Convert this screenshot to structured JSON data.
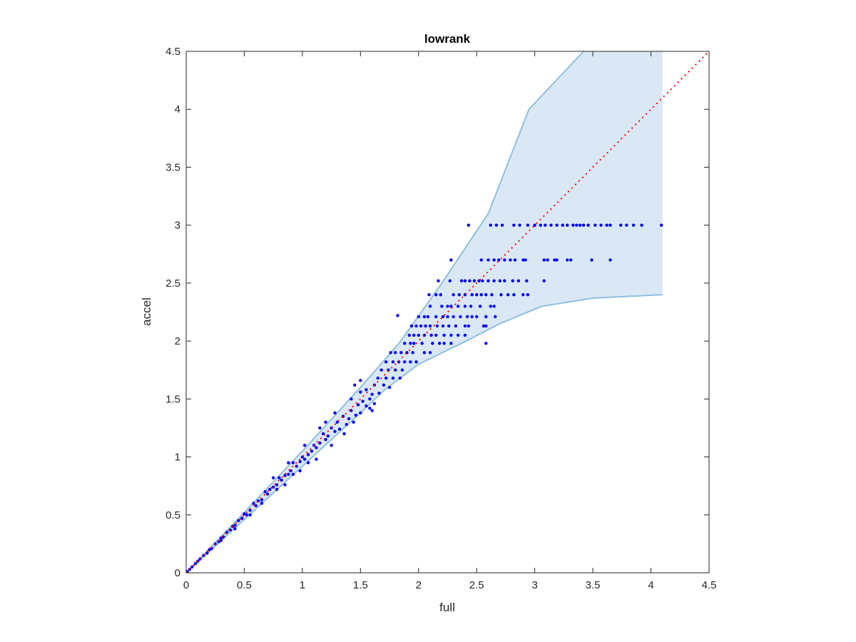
{
  "chart_data": {
    "type": "scatter",
    "title": "lowrank",
    "xlabel": "full",
    "ylabel": "accel",
    "xlim": [
      0,
      4.5
    ],
    "ylim": [
      0,
      4.5
    ],
    "xticks": [
      "0",
      "0.5",
      "1",
      "1.5",
      "2",
      "2.5",
      "3",
      "3.5",
      "4",
      "4.5"
    ],
    "yticks": [
      "0",
      "0.5",
      "1",
      "1.5",
      "2",
      "2.5",
      "3",
      "3.5",
      "4",
      "4.5"
    ],
    "grid": false,
    "colors": {
      "points": "#0000ff",
      "reference_line": "#ff0000",
      "band_fill": "#d9e8f4",
      "band_edge": "#8fc0e0",
      "axes": "#262626"
    },
    "reference_line": {
      "style": "dotted",
      "x": [
        0,
        4.5
      ],
      "y": [
        0,
        4.5
      ]
    },
    "band": {
      "upper": [
        [
          0,
          0
        ],
        [
          0.5,
          0.52
        ],
        [
          1,
          1.05
        ],
        [
          1.5,
          1.6
        ],
        [
          1.84,
          1.99
        ],
        [
          2.2,
          2.5
        ],
        [
          2.6,
          3.1
        ],
        [
          2.95,
          4.0
        ],
        [
          3.42,
          4.5
        ],
        [
          4.1,
          4.5
        ]
      ],
      "lower": [
        [
          0,
          0
        ],
        [
          0.5,
          0.46
        ],
        [
          1,
          0.92
        ],
        [
          1.5,
          1.38
        ],
        [
          1.71,
          1.58
        ],
        [
          2.0,
          1.8
        ],
        [
          2.39,
          1.99
        ],
        [
          2.7,
          2.15
        ],
        [
          3.06,
          2.3
        ],
        [
          3.5,
          2.37
        ],
        [
          4.1,
          2.4
        ]
      ]
    },
    "points": [
      [
        2.43,
        3.0
      ],
      [
        2.62,
        3.0
      ],
      [
        2.67,
        3.0
      ],
      [
        2.72,
        3.0
      ],
      [
        2.82,
        3.0
      ],
      [
        2.87,
        3.0
      ],
      [
        2.94,
        3.0
      ],
      [
        3.0,
        3.0
      ],
      [
        3.05,
        3.0
      ],
      [
        3.09,
        3.0
      ],
      [
        3.14,
        3.0
      ],
      [
        3.19,
        3.0
      ],
      [
        3.24,
        3.0
      ],
      [
        3.28,
        3.0
      ],
      [
        3.33,
        3.0
      ],
      [
        3.36,
        3.0
      ],
      [
        3.39,
        3.0
      ],
      [
        3.42,
        3.0
      ],
      [
        3.46,
        3.0
      ],
      [
        3.52,
        3.0
      ],
      [
        3.57,
        3.0
      ],
      [
        3.62,
        3.0
      ],
      [
        3.65,
        3.0
      ],
      [
        3.74,
        3.0
      ],
      [
        3.79,
        3.0
      ],
      [
        3.85,
        3.0
      ],
      [
        3.92,
        3.0
      ],
      [
        4.09,
        3.0
      ],
      [
        2.28,
        2.7
      ],
      [
        2.54,
        2.7
      ],
      [
        2.6,
        2.7
      ],
      [
        2.65,
        2.7
      ],
      [
        2.69,
        2.7
      ],
      [
        2.74,
        2.7
      ],
      [
        2.79,
        2.7
      ],
      [
        2.83,
        2.7
      ],
      [
        2.9,
        2.7
      ],
      [
        2.92,
        2.7
      ],
      [
        3.08,
        2.7
      ],
      [
        3.11,
        2.7
      ],
      [
        3.17,
        2.7
      ],
      [
        3.19,
        2.7
      ],
      [
        3.28,
        2.7
      ],
      [
        3.31,
        2.7
      ],
      [
        3.49,
        2.7
      ],
      [
        3.65,
        2.7
      ],
      [
        2.17,
        2.52
      ],
      [
        2.27,
        2.52
      ],
      [
        2.37,
        2.52
      ],
      [
        2.4,
        2.52
      ],
      [
        2.44,
        2.52
      ],
      [
        2.48,
        2.52
      ],
      [
        2.52,
        2.52
      ],
      [
        2.55,
        2.52
      ],
      [
        2.6,
        2.52
      ],
      [
        2.65,
        2.52
      ],
      [
        2.7,
        2.52
      ],
      [
        2.74,
        2.52
      ],
      [
        2.81,
        2.52
      ],
      [
        2.86,
        2.52
      ],
      [
        2.93,
        2.52
      ],
      [
        3.08,
        2.52
      ],
      [
        2.09,
        2.4
      ],
      [
        2.15,
        2.4
      ],
      [
        2.19,
        2.4
      ],
      [
        2.3,
        2.4
      ],
      [
        2.35,
        2.4
      ],
      [
        2.4,
        2.4
      ],
      [
        2.46,
        2.4
      ],
      [
        2.5,
        2.4
      ],
      [
        2.54,
        2.4
      ],
      [
        2.58,
        2.4
      ],
      [
        2.63,
        2.4
      ],
      [
        2.71,
        2.4
      ],
      [
        2.77,
        2.4
      ],
      [
        2.82,
        2.4
      ],
      [
        2.9,
        2.4
      ],
      [
        2.94,
        2.4
      ],
      [
        2.1,
        2.3
      ],
      [
        2.2,
        2.3
      ],
      [
        2.25,
        2.3
      ],
      [
        2.28,
        2.3
      ],
      [
        2.34,
        2.3
      ],
      [
        2.4,
        2.3
      ],
      [
        2.45,
        2.3
      ],
      [
        2.53,
        2.3
      ],
      [
        2.62,
        2.3
      ],
      [
        2.65,
        2.3
      ],
      [
        2.0,
        2.21
      ],
      [
        2.05,
        2.21
      ],
      [
        2.08,
        2.21
      ],
      [
        2.15,
        2.21
      ],
      [
        2.21,
        2.21
      ],
      [
        2.25,
        2.21
      ],
      [
        2.3,
        2.21
      ],
      [
        2.36,
        2.21
      ],
      [
        2.42,
        2.21
      ],
      [
        2.46,
        2.21
      ],
      [
        2.5,
        2.21
      ],
      [
        2.58,
        2.21
      ],
      [
        2.66,
        2.21
      ],
      [
        1.94,
        2.13
      ],
      [
        1.98,
        2.13
      ],
      [
        2.02,
        2.13
      ],
      [
        2.06,
        2.13
      ],
      [
        2.1,
        2.13
      ],
      [
        2.16,
        2.13
      ],
      [
        2.21,
        2.13
      ],
      [
        2.26,
        2.13
      ],
      [
        2.32,
        2.13
      ],
      [
        2.4,
        2.13
      ],
      [
        2.43,
        2.13
      ],
      [
        2.56,
        2.13
      ],
      [
        2.58,
        2.13
      ],
      [
        1.92,
        2.05
      ],
      [
        1.96,
        2.05
      ],
      [
        2.0,
        2.05
      ],
      [
        2.05,
        2.05
      ],
      [
        2.11,
        2.05
      ],
      [
        2.15,
        2.05
      ],
      [
        2.22,
        2.05
      ],
      [
        2.28,
        2.05
      ],
      [
        2.34,
        2.05
      ],
      [
        2.4,
        2.05
      ],
      [
        1.88,
        1.98
      ],
      [
        1.93,
        1.98
      ],
      [
        1.96,
        1.98
      ],
      [
        2.03,
        1.98
      ],
      [
        2.12,
        1.98
      ],
      [
        2.18,
        1.98
      ],
      [
        2.22,
        1.98
      ],
      [
        2.28,
        1.98
      ],
      [
        2.58,
        1.98
      ],
      [
        1.82,
        2.22
      ],
      [
        1.76,
        1.9
      ],
      [
        1.8,
        1.9
      ],
      [
        1.85,
        1.9
      ],
      [
        1.9,
        1.9
      ],
      [
        1.95,
        1.9
      ],
      [
        2.05,
        1.9
      ],
      [
        2.1,
        1.9
      ],
      [
        1.72,
        1.82
      ],
      [
        1.78,
        1.82
      ],
      [
        1.83,
        1.82
      ],
      [
        1.88,
        1.82
      ],
      [
        1.93,
        1.82
      ],
      [
        1.98,
        1.82
      ],
      [
        1.68,
        1.75
      ],
      [
        1.74,
        1.75
      ],
      [
        1.8,
        1.75
      ],
      [
        1.86,
        1.75
      ],
      [
        1.65,
        1.68
      ],
      [
        1.72,
        1.68
      ],
      [
        1.78,
        1.68
      ],
      [
        1.84,
        1.68
      ],
      [
        1.62,
        1.62
      ],
      [
        1.7,
        1.62
      ],
      [
        1.75,
        1.6
      ],
      [
        1.66,
        1.55
      ],
      [
        1.45,
        1.62
      ],
      [
        1.5,
        1.56
      ],
      [
        1.55,
        1.58
      ],
      [
        1.6,
        1.54
      ],
      [
        1.58,
        1.5
      ],
      [
        1.52,
        1.48
      ],
      [
        1.48,
        1.45
      ],
      [
        1.55,
        1.44
      ],
      [
        1.62,
        1.46
      ],
      [
        1.42,
        1.4
      ],
      [
        1.46,
        1.36
      ],
      [
        1.5,
        1.38
      ],
      [
        1.4,
        1.33
      ],
      [
        1.35,
        1.35
      ],
      [
        1.44,
        1.3
      ],
      [
        1.38,
        1.28
      ],
      [
        1.3,
        1.3
      ],
      [
        1.32,
        1.24
      ],
      [
        1.28,
        1.22
      ],
      [
        1.25,
        1.25
      ],
      [
        1.22,
        1.18
      ],
      [
        1.2,
        1.15
      ],
      [
        1.18,
        1.2
      ],
      [
        1.15,
        1.12
      ],
      [
        1.12,
        1.08
      ],
      [
        1.1,
        1.1
      ],
      [
        1.08,
        1.05
      ],
      [
        1.05,
        1.02
      ],
      [
        1.02,
        0.98
      ],
      [
        1.0,
        1.0
      ],
      [
        0.98,
        0.96
      ],
      [
        0.95,
        0.92
      ],
      [
        0.92,
        0.95
      ],
      [
        0.9,
        0.88
      ],
      [
        0.88,
        0.85
      ],
      [
        0.85,
        0.84
      ],
      [
        0.82,
        0.8
      ],
      [
        0.8,
        0.82
      ],
      [
        0.78,
        0.76
      ],
      [
        0.75,
        0.74
      ],
      [
        0.72,
        0.72
      ],
      [
        0.7,
        0.68
      ],
      [
        0.68,
        0.7
      ],
      [
        0.65,
        0.63
      ],
      [
        0.62,
        0.62
      ],
      [
        0.6,
        0.58
      ],
      [
        0.58,
        0.6
      ],
      [
        0.55,
        0.54
      ],
      [
        0.52,
        0.5
      ],
      [
        0.5,
        0.51
      ],
      [
        0.48,
        0.47
      ],
      [
        0.45,
        0.45
      ],
      [
        0.42,
        0.41
      ],
      [
        0.4,
        0.4
      ],
      [
        0.38,
        0.37
      ],
      [
        0.35,
        0.35
      ],
      [
        0.32,
        0.31
      ],
      [
        0.3,
        0.3
      ],
      [
        0.28,
        0.27
      ],
      [
        0.25,
        0.25
      ],
      [
        0.22,
        0.21
      ],
      [
        0.2,
        0.2
      ],
      [
        0.18,
        0.17
      ],
      [
        0.15,
        0.15
      ],
      [
        0.12,
        0.12
      ],
      [
        0.1,
        0.1
      ],
      [
        0.08,
        0.08
      ],
      [
        0.05,
        0.05
      ],
      [
        0.03,
        0.03
      ],
      [
        0.01,
        0.01
      ],
      [
        1.28,
        1.38
      ],
      [
        1.15,
        1.25
      ],
      [
        1.02,
        1.1
      ],
      [
        0.88,
        0.95
      ],
      [
        0.75,
        0.82
      ],
      [
        1.36,
        1.2
      ],
      [
        1.25,
        1.1
      ],
      [
        1.12,
        0.98
      ],
      [
        0.98,
        0.88
      ],
      [
        0.85,
        0.76
      ],
      [
        1.6,
        1.4
      ],
      [
        1.58,
        1.42
      ],
      [
        0.65,
        0.6
      ],
      [
        0.55,
        0.5
      ],
      [
        1.2,
        1.3
      ],
      [
        1.05,
        0.95
      ],
      [
        0.92,
        0.85
      ],
      [
        0.78,
        0.72
      ],
      [
        1.42,
        1.5
      ],
      [
        1.5,
        1.66
      ],
      [
        0.42,
        0.38
      ],
      [
        0.3,
        0.28
      ]
    ]
  }
}
